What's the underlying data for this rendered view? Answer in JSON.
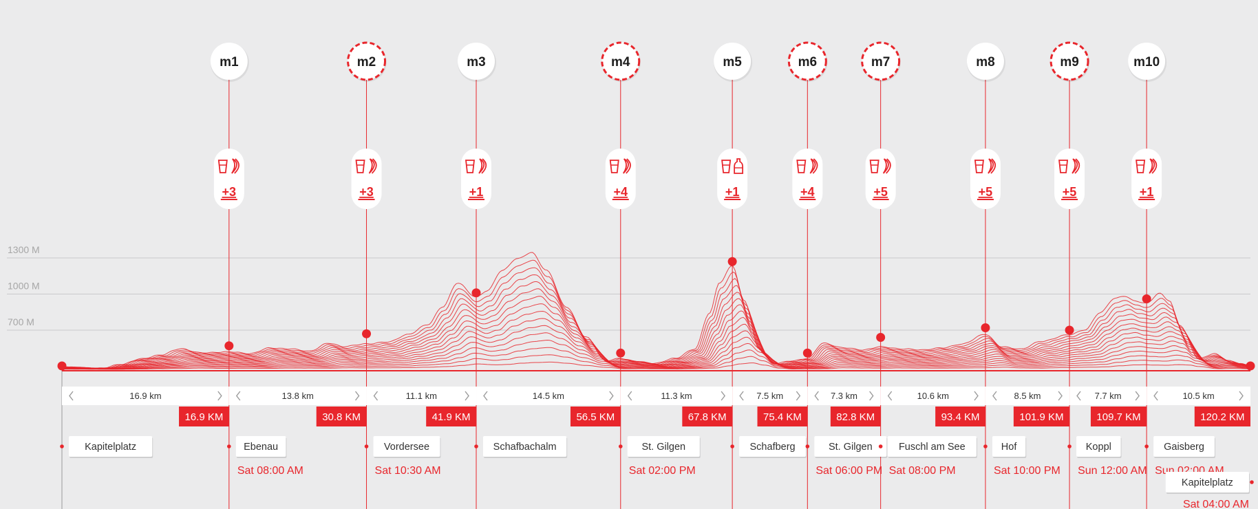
{
  "chart_data": {
    "type": "line",
    "title": "",
    "xlabel": "",
    "ylabel": "",
    "x_unit": "km",
    "xlim": [
      0,
      120.2
    ],
    "ylim": [
      400,
      1450
    ],
    "y_ticks": [
      {
        "value": 700,
        "label": "700 M"
      },
      {
        "value": 1000,
        "label": "1000 M"
      },
      {
        "value": 1300,
        "label": "1300 M"
      }
    ],
    "grid": true,
    "series": [
      {
        "x": [
          0,
          4,
          6,
          8,
          10,
          12,
          14,
          16.9,
          19,
          21,
          23,
          25,
          27,
          28.5,
          30.8,
          33,
          35,
          37,
          38.5,
          40,
          41.9,
          43,
          44.5,
          46,
          47.5,
          49,
          51,
          53,
          55,
          56.5,
          58,
          60,
          62,
          64,
          65.5,
          66.5,
          67.8,
          69,
          70.5,
          72,
          74,
          75.4,
          77,
          79,
          81,
          82.8,
          85,
          87,
          89,
          91,
          93.4,
          95,
          97,
          99,
          101.9,
          103.5,
          105,
          106.5,
          107.5,
          108.5,
          109.7,
          111,
          112,
          113,
          115,
          116.5,
          118,
          119,
          120.2
        ],
        "y": [
          450,
          440,
          470,
          520,
          550,
          600,
          570,
          575,
          560,
          610,
          600,
          580,
          650,
          620,
          640,
          660,
          720,
          800,
          950,
          1150,
          1030,
          1080,
          1250,
          1350,
          1400,
          1250,
          950,
          700,
          500,
          520,
          500,
          480,
          520,
          600,
          900,
          1150,
          1290,
          1000,
          600,
          480,
          500,
          520,
          650,
          610,
          590,
          620,
          600,
          590,
          610,
          640,
          720,
          620,
          600,
          660,
          720,
          760,
          900,
          1020,
          1040,
          1000,
          980,
          1060,
          1000,
          800,
          520,
          560,
          500,
          480,
          460
        ]
      }
    ],
    "stations": [
      {
        "id": "m1",
        "km": 16.9,
        "elevation": 570,
        "style": "solid",
        "count": "+3",
        "items": "cup,banana"
      },
      {
        "id": "m2",
        "km": 30.8,
        "elevation": 670,
        "style": "dashed",
        "count": "+3",
        "items": "cup,banana"
      },
      {
        "id": "m3",
        "km": 41.9,
        "elevation": 1010,
        "style": "solid",
        "count": "+1",
        "items": "cup,banana"
      },
      {
        "id": "m4",
        "km": 56.5,
        "elevation": 510,
        "style": "dashed",
        "count": "+4",
        "items": "cup,banana"
      },
      {
        "id": "m5",
        "km": 67.8,
        "elevation": 1270,
        "style": "solid",
        "count": "+1",
        "items": "cup,bottle"
      },
      {
        "id": "m6",
        "km": 75.4,
        "elevation": 510,
        "style": "dashed",
        "count": "+4",
        "items": "cup,banana"
      },
      {
        "id": "m7",
        "km": 82.8,
        "elevation": 640,
        "style": "dashed",
        "count": "+5",
        "items": "cup,banana"
      },
      {
        "id": "m8",
        "km": 93.4,
        "elevation": 720,
        "style": "solid",
        "count": "+5",
        "items": "cup,banana"
      },
      {
        "id": "m9",
        "km": 101.9,
        "elevation": 700,
        "style": "dashed",
        "count": "+5",
        "items": "cup,banana"
      },
      {
        "id": "m10",
        "km": 109.7,
        "elevation": 960,
        "style": "solid",
        "count": "+1",
        "items": "cup,banana"
      }
    ],
    "start_point": {
      "km": 0,
      "elevation": 460
    },
    "end_point": {
      "km": 120.2,
      "elevation": 460
    },
    "segments": [
      "16.9 km",
      "13.8 km",
      "11.1 km",
      "14.5 km",
      "11.3 km",
      "7.5 km",
      "7.3 km",
      "10.6 km",
      "8.5 km",
      "7.7 km",
      "10.5 km"
    ],
    "cumulative_labels": [
      "16.9 KM",
      "30.8 KM",
      "41.9 KM",
      "56.5 KM",
      "67.8 KM",
      "75.4 KM",
      "82.8 KM",
      "93.4 KM",
      "101.9 KM",
      "109.7 KM",
      "120.2 KM"
    ],
    "places": [
      {
        "km": 0,
        "name": "Kapitelplatz",
        "time": ""
      },
      {
        "km": 16.9,
        "name": "Ebenau",
        "time": "Sat 08:00 AM"
      },
      {
        "km": 30.8,
        "name": "Vordersee",
        "time": "Sat 10:30 AM"
      },
      {
        "km": 41.9,
        "name": "Schafbachalm",
        "time": ""
      },
      {
        "km": 56.5,
        "name": "St. Gilgen",
        "time": "Sat 02:00 PM"
      },
      {
        "km": 67.8,
        "name": "Schafberg",
        "time": ""
      },
      {
        "km": 75.4,
        "name": "St. Gilgen",
        "time": "Sat 06:00 PM"
      },
      {
        "km": 82.8,
        "name": "Fuschl am See",
        "time": "Sat 08:00 PM"
      },
      {
        "km": 93.4,
        "name": "Hof",
        "time": "Sat 10:00 PM"
      },
      {
        "km": 101.9,
        "name": "Koppl",
        "time": "Sun 12:00 AM"
      },
      {
        "km": 109.7,
        "name": "Gaisberg",
        "time": "Sun 02:00 AM"
      },
      {
        "km": 120.2,
        "name": "Kapitelplatz",
        "time": "Sat 04:00 AM"
      }
    ],
    "colors": {
      "accent": "#e8262c",
      "background": "#ebebec",
      "grid": "#c9c9cb",
      "axis_label": "#a6a6a6",
      "panel": "#ffffff",
      "text": "#1e1e1e"
    },
    "icons": {
      "cup": "cup-icon",
      "banana": "banana-icon",
      "bottle": "bottle-icon",
      "chevron_left": "chevron-left-icon",
      "chevron_right": "chevron-right-icon"
    }
  }
}
